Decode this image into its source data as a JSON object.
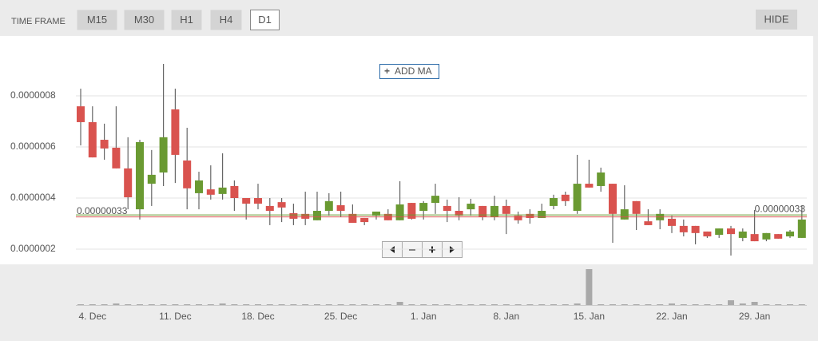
{
  "toolbar": {
    "label": "TIME FRAME",
    "timeframes": [
      "M15",
      "M30",
      "H1",
      "H4",
      "D1"
    ],
    "selected": 4,
    "hide": "HIDE"
  },
  "add_ma": "ADD MA",
  "chart_data": {
    "type": "candlestick",
    "categories": [
      null,
      "4. Dec",
      null,
      null,
      null,
      null,
      null,
      null,
      "11. Dec",
      null,
      null,
      null,
      null,
      null,
      null,
      "18. Dec",
      null,
      null,
      null,
      null,
      null,
      null,
      "25. Dec",
      null,
      null,
      null,
      null,
      null,
      null,
      "1. Jan",
      null,
      null,
      null,
      null,
      null,
      null,
      "8. Jan",
      null,
      null,
      null,
      null,
      null,
      null,
      "15. Jan",
      null,
      null,
      null,
      null,
      null,
      null,
      "22. Jan",
      null,
      null,
      null,
      null,
      null,
      null,
      "29. Jan",
      null,
      null,
      null,
      null
    ],
    "open": [
      7.59e-07,
      6.97e-07,
      6.28e-07,
      5.97e-07,
      5.16e-07,
      3.56e-07,
      4.56e-07,
      5e-07,
      7.47e-07,
      5.47e-07,
      4.19e-07,
      4.34e-07,
      4.16e-07,
      4.47e-07,
      4e-07,
      4e-07,
      3.69e-07,
      3.84e-07,
      3.41e-07,
      3.38e-07,
      3.13e-07,
      3.5e-07,
      3.72e-07,
      3.38e-07,
      3.22e-07,
      3.31e-07,
      3.38e-07,
      3.13e-07,
      3.81e-07,
      3.5e-07,
      3.81e-07,
      3.69e-07,
      3.5e-07,
      3.56e-07,
      3.69e-07,
      3.25e-07,
      3.69e-07,
      3.31e-07,
      3.38e-07,
      3.22e-07,
      3.69e-07,
      4.13e-07,
      3.5e-07,
      4.56e-07,
      4.47e-07,
      4.56e-07,
      3.16e-07,
      3.88e-07,
      3.09e-07,
      3.13e-07,
      3.19e-07,
      2.91e-07,
      2.91e-07,
      2.69e-07,
      2.56e-07,
      2.81e-07,
      2.44e-07,
      2.59e-07,
      2.38e-07,
      2.59e-07,
      2.5e-07,
      2.44e-07
    ],
    "high": [
      8.28e-07,
      7.59e-07,
      6.91e-07,
      7.59e-07,
      6.38e-07,
      6.28e-07,
      5.88e-07,
      9.25e-07,
      8.28e-07,
      6.75e-07,
      5.03e-07,
      5.28e-07,
      5.75e-07,
      4.69e-07,
      4e-07,
      4.56e-07,
      4e-07,
      4e-07,
      3.78e-07,
      4.25e-07,
      4.25e-07,
      4.19e-07,
      4.25e-07,
      3.75e-07,
      3.22e-07,
      3.47e-07,
      3.56e-07,
      4.66e-07,
      3.81e-07,
      3.88e-07,
      4.56e-07,
      3.94e-07,
      4.03e-07,
      3.97e-07,
      3.69e-07,
      4.09e-07,
      3.94e-07,
      3.47e-07,
      3.56e-07,
      3.78e-07,
      4.13e-07,
      4.25e-07,
      5.69e-07,
      5.5e-07,
      5.19e-07,
      4.56e-07,
      4.5e-07,
      3.88e-07,
      3.56e-07,
      3.56e-07,
      3.31e-07,
      3.16e-07,
      2.91e-07,
      2.69e-07,
      2.81e-07,
      2.91e-07,
      2.81e-07,
      3.53e-07,
      2.63e-07,
      2.59e-07,
      2.75e-07,
      3.69e-07
    ],
    "low": [
      6.06e-07,
      5.59e-07,
      5.5e-07,
      5.16e-07,
      3.56e-07,
      3.16e-07,
      3.69e-07,
      4.47e-07,
      4.59e-07,
      3.56e-07,
      3.56e-07,
      3.94e-07,
      3.94e-07,
      3.5e-07,
      3.16e-07,
      3.56e-07,
      2.94e-07,
      3.06e-07,
      2.94e-07,
      2.94e-07,
      3.13e-07,
      3.31e-07,
      3.25e-07,
      3.03e-07,
      2.94e-07,
      3.16e-07,
      3.13e-07,
      3.13e-07,
      3.16e-07,
      3.16e-07,
      3.38e-07,
      3.06e-07,
      3.13e-07,
      3.31e-07,
      3.13e-07,
      3.13e-07,
      2.59e-07,
      3e-07,
      3e-07,
      3.22e-07,
      3.56e-07,
      3.69e-07,
      3.38e-07,
      4.41e-07,
      4.25e-07,
      2.25e-07,
      3.16e-07,
      2.75e-07,
      2.94e-07,
      2.78e-07,
      2.63e-07,
      2.5e-07,
      2.19e-07,
      2.44e-07,
      2.44e-07,
      1.75e-07,
      2.31e-07,
      2.31e-07,
      2.31e-07,
      2.41e-07,
      2.44e-07,
      2.44e-07
    ],
    "close": [
      6.97e-07,
      5.59e-07,
      5.94e-07,
      5.16e-07,
      4.03e-07,
      6.19e-07,
      4.91e-07,
      6.38e-07,
      5.69e-07,
      4.38e-07,
      4.69e-07,
      4.13e-07,
      4.41e-07,
      4e-07,
      3.78e-07,
      3.78e-07,
      3.5e-07,
      3.63e-07,
      3.19e-07,
      3.19e-07,
      3.5e-07,
      3.88e-07,
      3.5e-07,
      3.03e-07,
      3.06e-07,
      3.47e-07,
      3.13e-07,
      3.75e-07,
      3.19e-07,
      3.81e-07,
      4.09e-07,
      3.5e-07,
      3.31e-07,
      3.78e-07,
      3.25e-07,
      3.69e-07,
      3.38e-07,
      3.13e-07,
      3.22e-07,
      3.5e-07,
      4e-07,
      3.88e-07,
      4.56e-07,
      4.41e-07,
      5e-07,
      3.38e-07,
      3.56e-07,
      3.38e-07,
      2.94e-07,
      3.38e-07,
      2.91e-07,
      2.66e-07,
      2.63e-07,
      2.5e-07,
      2.81e-07,
      2.59e-07,
      2.69e-07,
      2.31e-07,
      2.63e-07,
      2.41e-07,
      2.69e-07,
      3.16e-07
    ],
    "up_color": "#6a9a32",
    "down_color": "#d9534f",
    "volume": [
      1,
      1,
      1,
      2,
      1,
      1,
      1,
      1,
      1,
      1,
      1,
      1,
      2,
      1,
      1,
      1,
      1,
      1,
      1,
      1,
      1,
      1,
      1,
      1,
      1,
      1,
      1,
      4,
      1,
      1,
      1,
      1,
      1,
      1,
      1,
      1,
      1,
      1,
      1,
      1,
      1,
      1,
      2,
      45,
      1,
      1,
      1,
      1,
      1,
      1,
      2,
      1,
      1,
      1,
      1,
      6,
      2,
      4,
      1,
      1,
      1,
      1
    ],
    "volume_ylim": [
      0,
      50
    ],
    "volume_color": "#a9a9a9",
    "ylim": [
      1.4375e-07,
      1.034375e-06
    ],
    "yticks": [
      {
        "value": 2e-07,
        "label": "0.0000002"
      },
      {
        "value": 4e-07,
        "label": "0.0000004"
      },
      {
        "value": 6e-07,
        "label": "0.0000006"
      },
      {
        "value": 8e-07,
        "label": "0.0000008"
      }
    ],
    "grid": true,
    "price_lines": [
      {
        "value": 3.26e-07,
        "label": "0.00000033",
        "color": "#d9534f"
      },
      {
        "value": 3.34e-07,
        "label": "0.00000033",
        "color": "#6a9a32"
      }
    ]
  }
}
